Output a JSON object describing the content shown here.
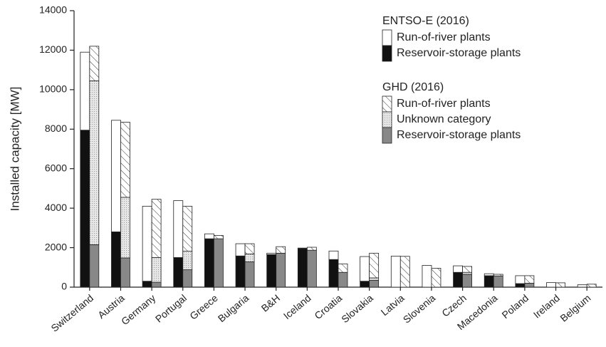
{
  "chart_data": {
    "type": "grouped-stacked-bar",
    "y_label": "Installed capacity [MW]",
    "categories": [
      "Switzerland",
      "Austria",
      "Germany",
      "Portugal",
      "Greece",
      "Bulgaria",
      "B&H",
      "Iceland",
      "Croatia",
      "Slovakia",
      "Latvia",
      "Slovenia",
      "Czech",
      "Macedonia",
      "Poland",
      "Ireland",
      "Belgium"
    ],
    "ylim": [
      0,
      14000
    ],
    "yticks": [
      0,
      2000,
      4000,
      6000,
      8000,
      10000,
      12000,
      14000
    ],
    "stacks": [
      {
        "name": "ENTSO-E (2016)",
        "series": [
          {
            "name": "Run-of-river plants",
            "color": "#ffffff",
            "pattern": "solid",
            "values": [
              3950,
              5650,
              3800,
              2880,
              250,
              620,
              70,
              30,
              430,
              1250,
              1570,
              1100,
              330,
              100,
              400,
              230,
              120
            ]
          },
          {
            "name": "Reservoir-storage plants",
            "color": "#111111",
            "pattern": "solid",
            "values": [
              7950,
              2800,
              300,
              1500,
              2450,
              1580,
              1650,
              1950,
              1400,
              300,
              0,
              0,
              750,
              580,
              180,
              0,
              0
            ]
          }
        ]
      },
      {
        "name": "GHD (2016)",
        "series": [
          {
            "name": "Run-of-river plants",
            "color": "#ffffff",
            "pattern": "hatch",
            "values": [
              1750,
              3800,
              2950,
              2280,
              170,
              520,
              330,
              150,
              430,
              1250,
              1560,
              960,
              300,
              80,
              380,
              220,
              150
            ]
          },
          {
            "name": "Unknown category",
            "color": "#dddddd",
            "pattern": "dots",
            "values": [
              8300,
              3070,
              1250,
              940,
              0,
              400,
              0,
              0,
              0,
              120,
              0,
              0,
              100,
              0,
              0,
              0,
              0
            ]
          },
          {
            "name": "Reservoir-storage plants",
            "color": "#888888",
            "pattern": "solid",
            "values": [
              2150,
              1480,
              250,
              880,
              2450,
              1280,
              1720,
              1870,
              750,
              350,
              0,
              0,
              650,
              570,
              200,
              0,
              0
            ]
          }
        ]
      }
    ]
  }
}
